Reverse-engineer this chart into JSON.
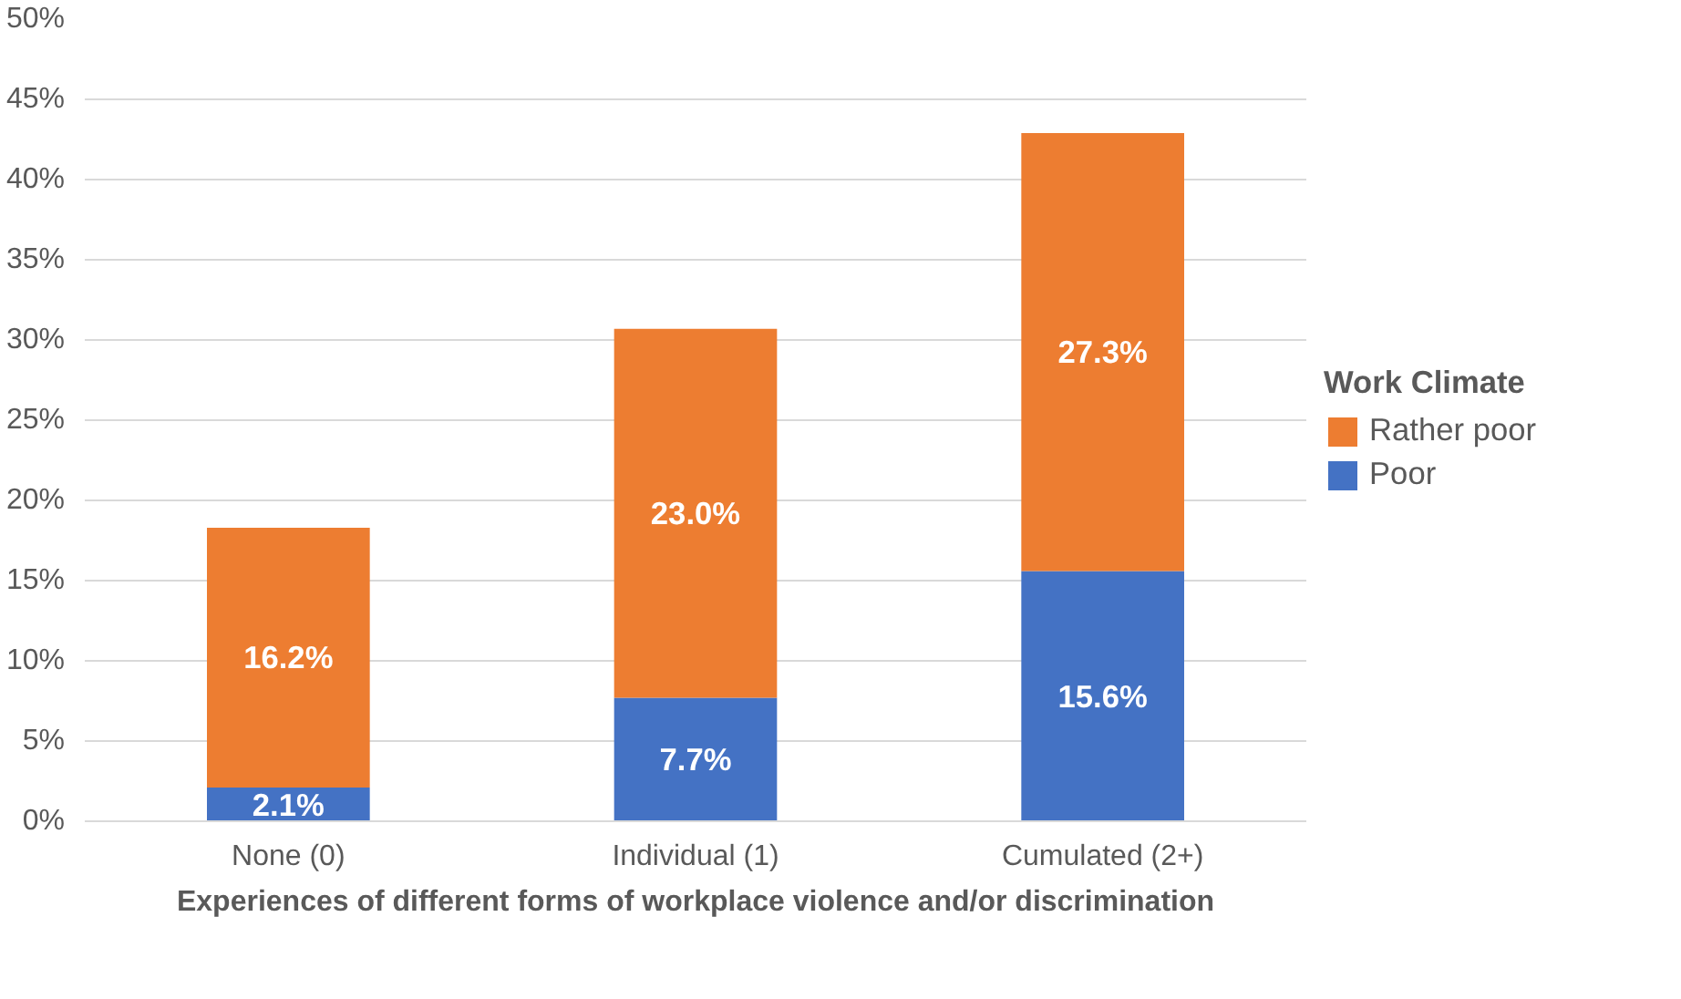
{
  "chart_data": {
    "type": "bar",
    "stacked": true,
    "xlabel": "Experiences of different forms of workplace violence and/or discrimination",
    "legend_title": "Work Climate",
    "categories": [
      "None (0)",
      "Individual (1)",
      "Cumulated (2+)"
    ],
    "series": [
      {
        "name": "Poor",
        "color": "#4472c4",
        "values": [
          2.1,
          7.7,
          15.6
        ],
        "value_labels": [
          "2.1%",
          "7.7%",
          "15.6%"
        ]
      },
      {
        "name": "Rather poor",
        "color": "#ed7d31",
        "values": [
          16.2,
          23.0,
          27.3
        ],
        "value_labels": [
          "16.2%",
          "23.0%",
          "27.3%"
        ]
      }
    ],
    "ylim": [
      0,
      50
    ],
    "yticks": [
      {
        "value": 0,
        "label": "0%"
      },
      {
        "value": 5,
        "label": "5%"
      },
      {
        "value": 10,
        "label": "10%"
      },
      {
        "value": 15,
        "label": "15%"
      },
      {
        "value": 20,
        "label": "20%"
      },
      {
        "value": 25,
        "label": "25%"
      },
      {
        "value": 30,
        "label": "30%"
      },
      {
        "value": 35,
        "label": "35%"
      },
      {
        "value": 40,
        "label": "40%"
      },
      {
        "value": 45,
        "label": "45%"
      },
      {
        "value": 50,
        "label": "50%"
      }
    ],
    "grid": "y",
    "legend": "right"
  }
}
